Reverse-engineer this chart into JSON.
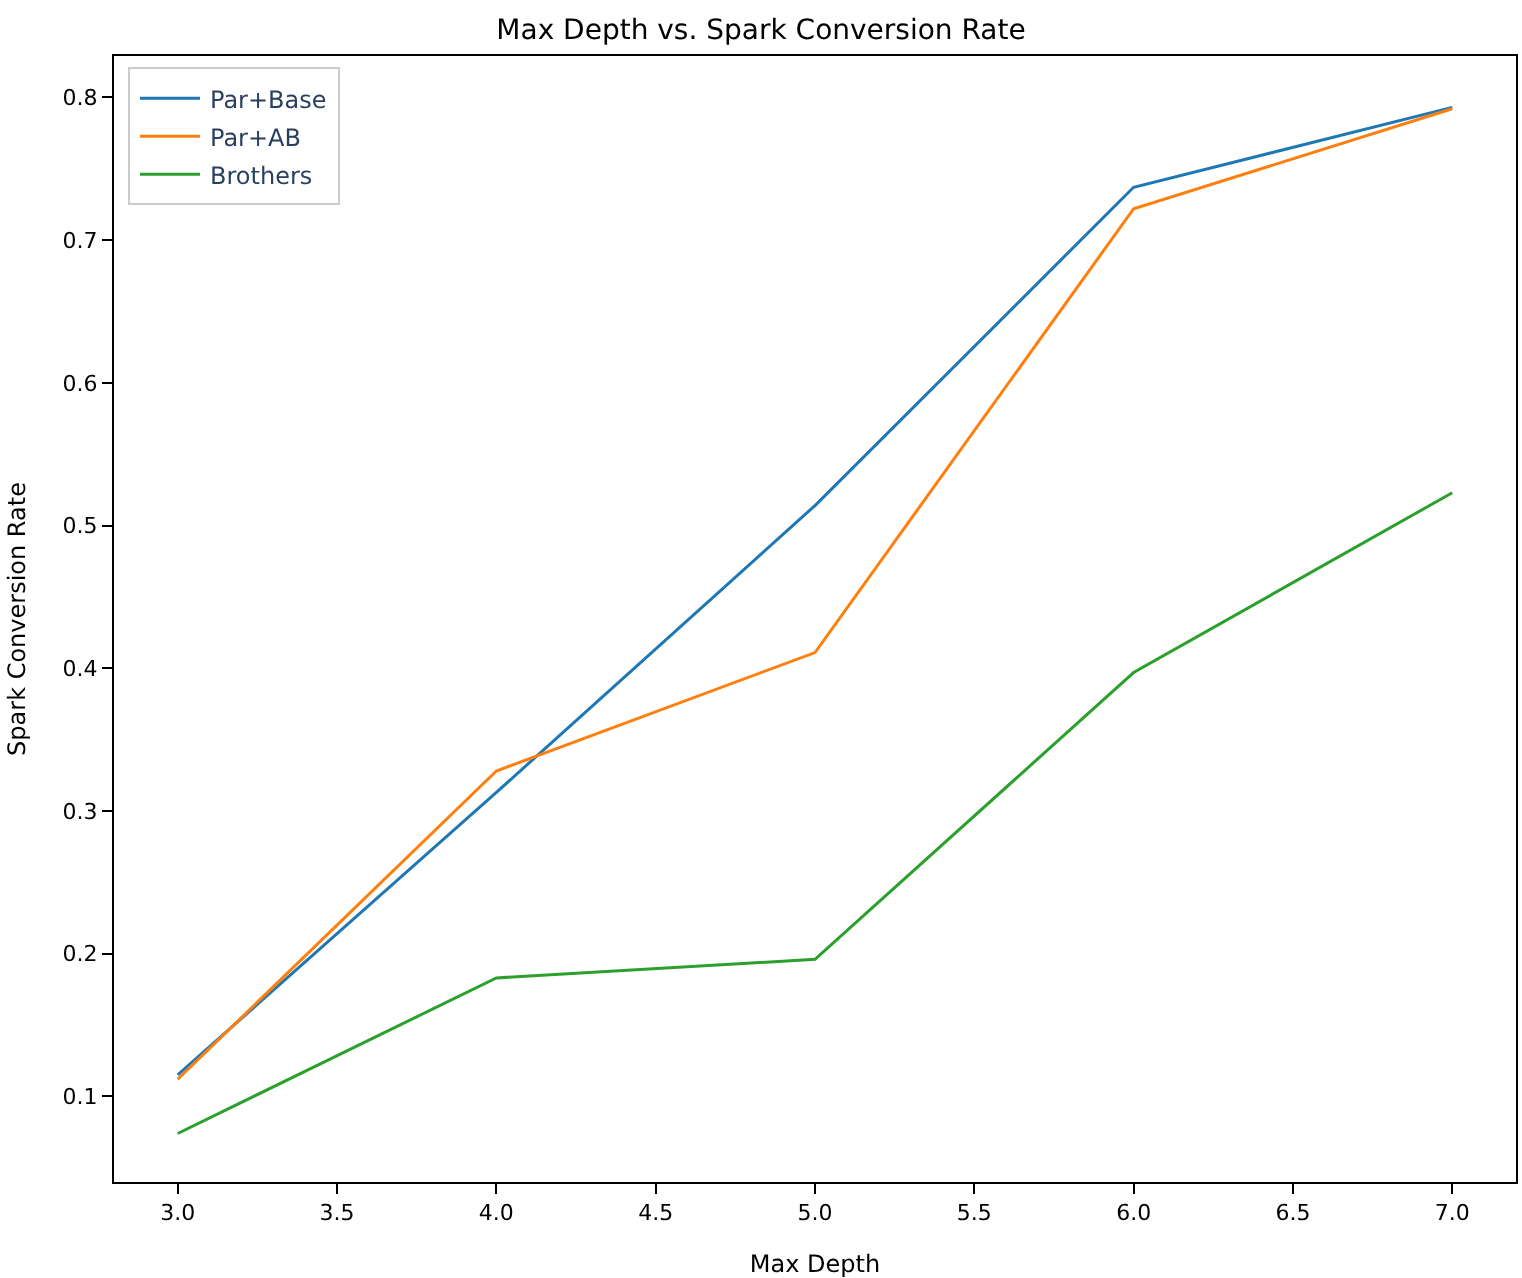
{
  "chart_data": {
    "type": "line",
    "title": "Max Depth vs. Spark Conversion Rate",
    "xlabel": "Max Depth",
    "ylabel": "Spark Conversion Rate",
    "x": [
      3,
      4,
      5,
      6,
      7
    ],
    "series": [
      {
        "name": "Par+Base",
        "color": "#1f77b4",
        "values": [
          0.115,
          0.313,
          0.514,
          0.737,
          0.793
        ]
      },
      {
        "name": "Par+AB",
        "color": "#ff7f0e",
        "values": [
          0.112,
          0.328,
          0.411,
          0.722,
          0.792
        ]
      },
      {
        "name": "Brothers",
        "color": "#2ca02c",
        "values": [
          0.074,
          0.183,
          0.196,
          0.397,
          0.523
        ]
      }
    ],
    "xlim": [
      2.8,
      7.2
    ],
    "xticks": [
      {
        "value": 3,
        "label": "3.0"
      },
      {
        "value": 3.5,
        "label": "3.5"
      },
      {
        "value": 4,
        "label": "4.0"
      },
      {
        "value": 4.5,
        "label": "4.5"
      },
      {
        "value": 5,
        "label": "5.0"
      },
      {
        "value": 5.5,
        "label": "5.5"
      },
      {
        "value": 6,
        "label": "6.0"
      },
      {
        "value": 6.5,
        "label": "6.5"
      },
      {
        "value": 7,
        "label": "7.0"
      }
    ],
    "ylim": [
      0.04,
      0.829
    ],
    "yticks": [
      0.1,
      0.2,
      0.3,
      0.4,
      0.5,
      0.6,
      0.7,
      0.8
    ],
    "legend": "top left",
    "line_style": "solid",
    "marker": "none"
  }
}
